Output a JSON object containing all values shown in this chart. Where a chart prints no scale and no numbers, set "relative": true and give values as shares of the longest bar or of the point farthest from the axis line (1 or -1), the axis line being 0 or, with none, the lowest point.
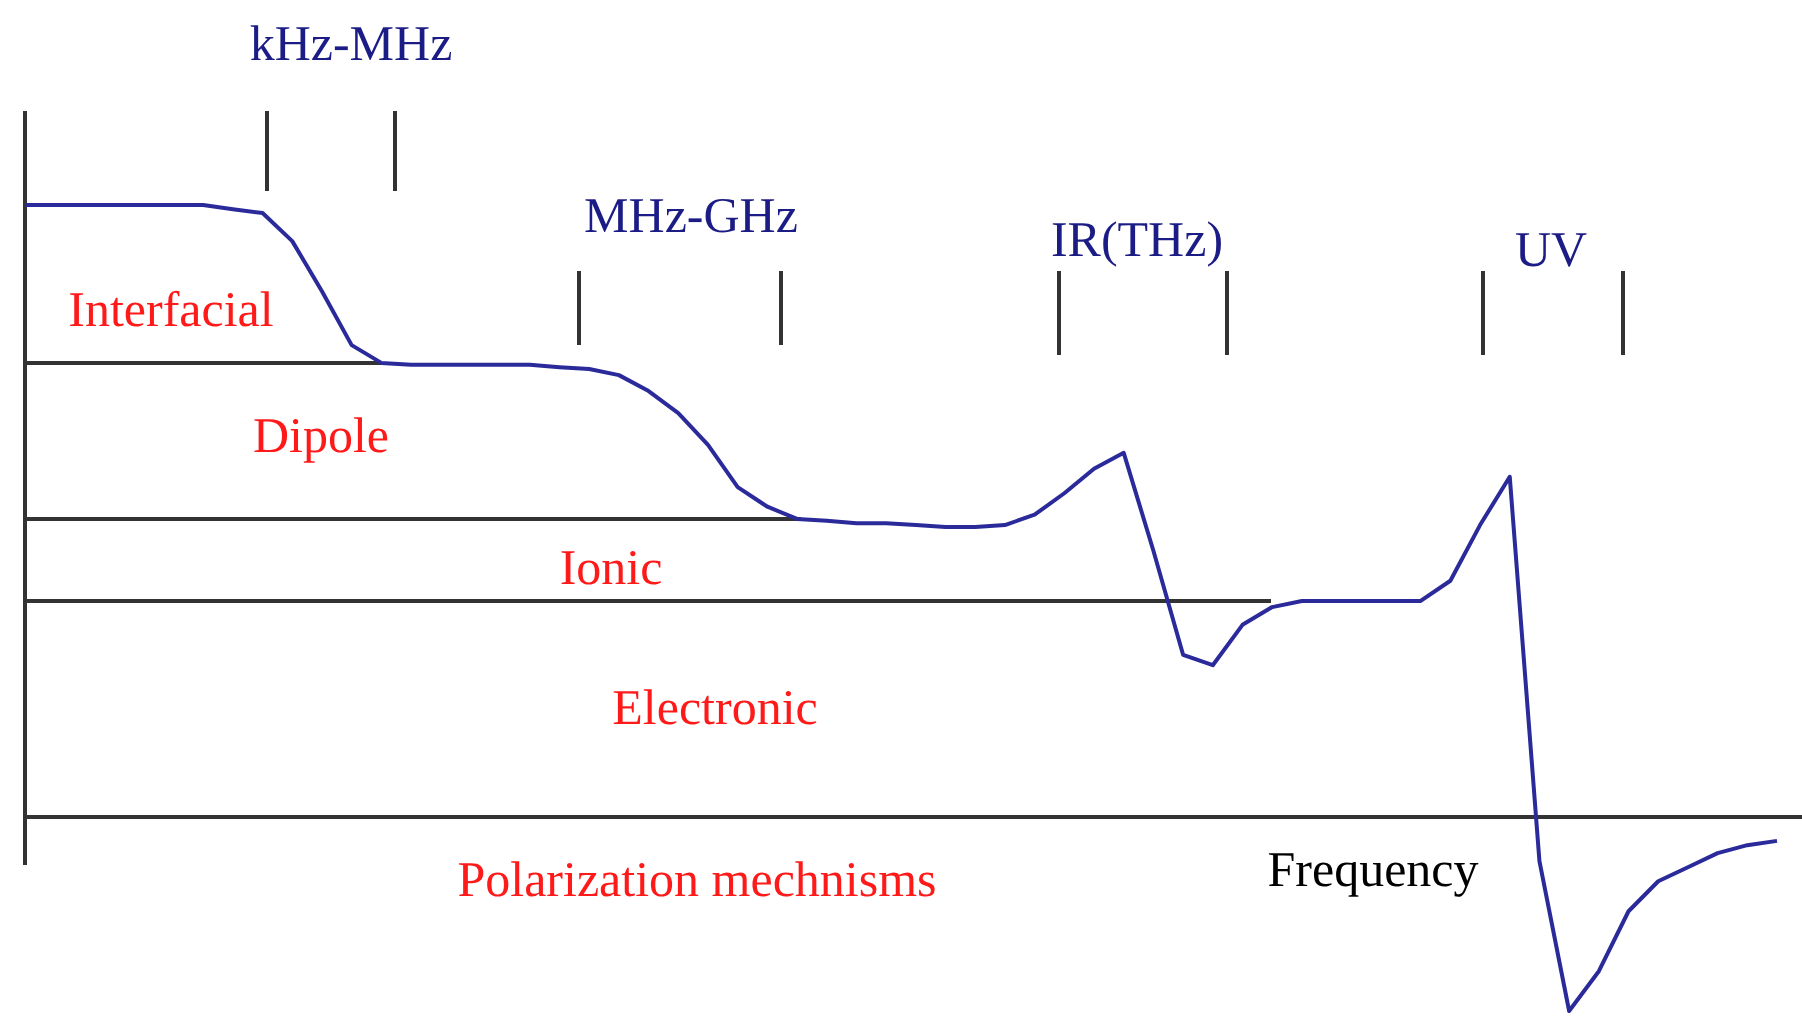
{
  "chart_data": {
    "type": "line",
    "relative": true,
    "tick_labels": false,
    "marker": "none",
    "line_style": "solid",
    "xlabel": "Frequency",
    "categories": [
      null,
      null,
      null,
      null,
      null,
      null,
      null,
      null,
      null,
      null,
      null,
      null,
      null,
      null,
      null,
      null,
      null,
      null,
      null,
      null,
      null,
      null,
      null,
      null,
      null,
      null,
      null,
      null,
      null,
      null,
      null,
      null,
      null,
      null,
      null,
      null,
      null,
      null,
      null,
      null,
      null,
      null,
      null,
      null,
      null,
      null,
      null,
      null,
      null,
      null,
      null,
      null,
      null,
      null,
      null,
      null,
      null,
      null,
      null,
      null
    ],
    "series": [
      {
        "color": "#2a2a9a",
        "values": [
          1.0,
          1.0,
          1.0,
          1.0,
          1.0,
          1.0,
          1.0,
          0.993,
          0.987,
          0.941,
          0.859,
          0.771,
          0.742,
          0.739,
          0.739,
          0.739,
          0.739,
          0.739,
          0.735,
          0.732,
          0.722,
          0.696,
          0.66,
          0.608,
          0.539,
          0.507,
          0.487,
          0.484,
          0.48,
          0.48,
          0.477,
          0.474,
          0.474,
          0.477,
          0.494,
          0.529,
          0.569,
          0.595,
          0.435,
          0.265,
          0.248,
          0.314,
          0.343,
          0.353,
          0.353,
          0.353,
          0.353,
          0.353,
          0.386,
          0.477,
          0.556,
          -0.072,
          -0.317,
          -0.252,
          -0.154,
          -0.105,
          -0.082,
          -0.059,
          -0.046,
          -0.039
        ]
      }
    ],
    "ref_lines": [
      {
        "axis": "y",
        "value": 0.742,
        "color": "#333333"
      },
      {
        "axis": "y",
        "value": 0.487,
        "color": "#333333"
      },
      {
        "axis": "y",
        "value": 0.353,
        "color": "#333333"
      }
    ],
    "annotations": [
      "Interfacial",
      "Dipole",
      "Ionic",
      "Electronic",
      "Polarization mechnisms",
      "kHz-MHz",
      "MHz-GHz",
      "IR(THz)",
      "UV"
    ]
  }
}
